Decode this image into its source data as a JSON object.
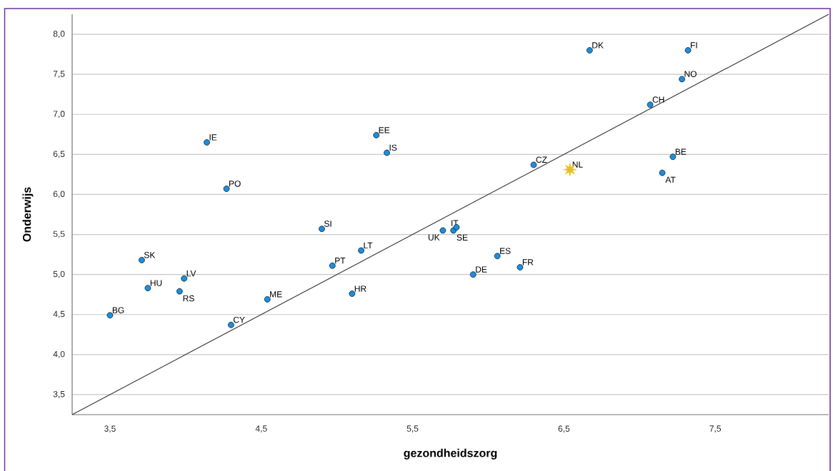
{
  "chart_data": {
    "type": "scatter",
    "xlabel": "gezondheidszorg",
    "ylabel": "Onderwijs",
    "xlim": [
      3.25,
      8.25
    ],
    "ylim": [
      3.25,
      8.25
    ],
    "xticks": [
      {
        "value": 3.5,
        "label": "3,5"
      },
      {
        "value": 4.5,
        "label": "4,5"
      },
      {
        "value": 5.5,
        "label": "5,5"
      },
      {
        "value": 6.5,
        "label": "6,5"
      },
      {
        "value": 7.5,
        "label": "7,5"
      }
    ],
    "yticks": [
      {
        "value": 3.5,
        "label": "3,5"
      },
      {
        "value": 4.0,
        "label": "4,0"
      },
      {
        "value": 4.5,
        "label": "4,5"
      },
      {
        "value": 5.0,
        "label": "5,0"
      },
      {
        "value": 5.5,
        "label": "5,5"
      },
      {
        "value": 6.0,
        "label": "6,0"
      },
      {
        "value": 6.5,
        "label": "6,5"
      },
      {
        "value": 7.0,
        "label": "7,0"
      },
      {
        "value": 7.5,
        "label": "7,5"
      },
      {
        "value": 8.0,
        "label": "8,0"
      }
    ],
    "grid": "y",
    "series": [
      {
        "color": "#1a8fe0",
        "marker": "circle",
        "x": [
          3.5,
          3.71,
          3.75,
          3.99,
          3.96,
          4.3,
          4.54,
          4.14,
          4.27,
          4.9,
          4.97,
          5.16,
          5.1,
          5.26,
          5.33,
          5.7,
          5.77,
          5.79,
          5.9,
          6.06,
          6.21,
          6.3,
          6.67,
          7.32,
          7.28,
          7.07,
          7.22,
          7.15
        ],
        "values": [
          4.49,
          5.18,
          4.83,
          4.95,
          4.79,
          4.37,
          4.69,
          6.65,
          6.07,
          5.57,
          5.11,
          5.3,
          4.76,
          6.74,
          6.52,
          5.55,
          5.55,
          5.59,
          5.0,
          5.23,
          5.09,
          6.37,
          7.8,
          7.8,
          7.44,
          7.12,
          6.47,
          6.27
        ]
      },
      {
        "color": "#e8c020",
        "marker": "star",
        "x": [
          6.54
        ],
        "values": [
          6.31
        ]
      },
      {
        "type": "line",
        "color": "#333333",
        "marker": "none",
        "line_style": "solid",
        "x": [
          3.25,
          8.25
        ],
        "values": [
          3.25,
          8.25
        ]
      }
    ],
    "annotations": [
      {
        "text": "BG",
        "x": 3.5,
        "y": 4.49
      },
      {
        "text": "SK",
        "x": 3.71,
        "y": 5.18
      },
      {
        "text": "HU",
        "x": 3.75,
        "y": 4.83
      },
      {
        "text": "LV",
        "x": 3.99,
        "y": 4.95
      },
      {
        "text": "RS",
        "x": 3.96,
        "y": 4.79
      },
      {
        "text": "CY",
        "x": 4.3,
        "y": 4.37
      },
      {
        "text": "ME",
        "x": 4.54,
        "y": 4.69
      },
      {
        "text": "IE",
        "x": 4.14,
        "y": 6.65
      },
      {
        "text": "PO",
        "x": 4.27,
        "y": 6.07
      },
      {
        "text": "SI",
        "x": 4.9,
        "y": 5.57
      },
      {
        "text": "PT",
        "x": 4.97,
        "y": 5.11
      },
      {
        "text": "LT",
        "x": 5.16,
        "y": 5.3
      },
      {
        "text": "HR",
        "x": 5.1,
        "y": 4.76
      },
      {
        "text": "EE",
        "x": 5.26,
        "y": 6.74
      },
      {
        "text": "IS",
        "x": 5.33,
        "y": 6.52
      },
      {
        "text": "UK",
        "x": 5.7,
        "y": 5.55
      },
      {
        "text": "SE",
        "x": 5.77,
        "y": 5.55
      },
      {
        "text": "IT",
        "x": 5.79,
        "y": 5.59
      },
      {
        "text": "DE",
        "x": 5.9,
        "y": 5.0
      },
      {
        "text": "ES",
        "x": 6.06,
        "y": 5.23
      },
      {
        "text": "FR",
        "x": 6.21,
        "y": 5.09
      },
      {
        "text": "CZ",
        "x": 6.3,
        "y": 6.37
      },
      {
        "text": "NL",
        "x": 6.54,
        "y": 6.31
      },
      {
        "text": "DK",
        "x": 6.67,
        "y": 7.8
      },
      {
        "text": "FI",
        "x": 7.32,
        "y": 7.8
      },
      {
        "text": "NO",
        "x": 7.28,
        "y": 7.44
      },
      {
        "text": "CH",
        "x": 7.07,
        "y": 7.12
      },
      {
        "text": "BE",
        "x": 7.22,
        "y": 6.47
      },
      {
        "text": "AT",
        "x": 7.15,
        "y": 6.27
      }
    ]
  }
}
